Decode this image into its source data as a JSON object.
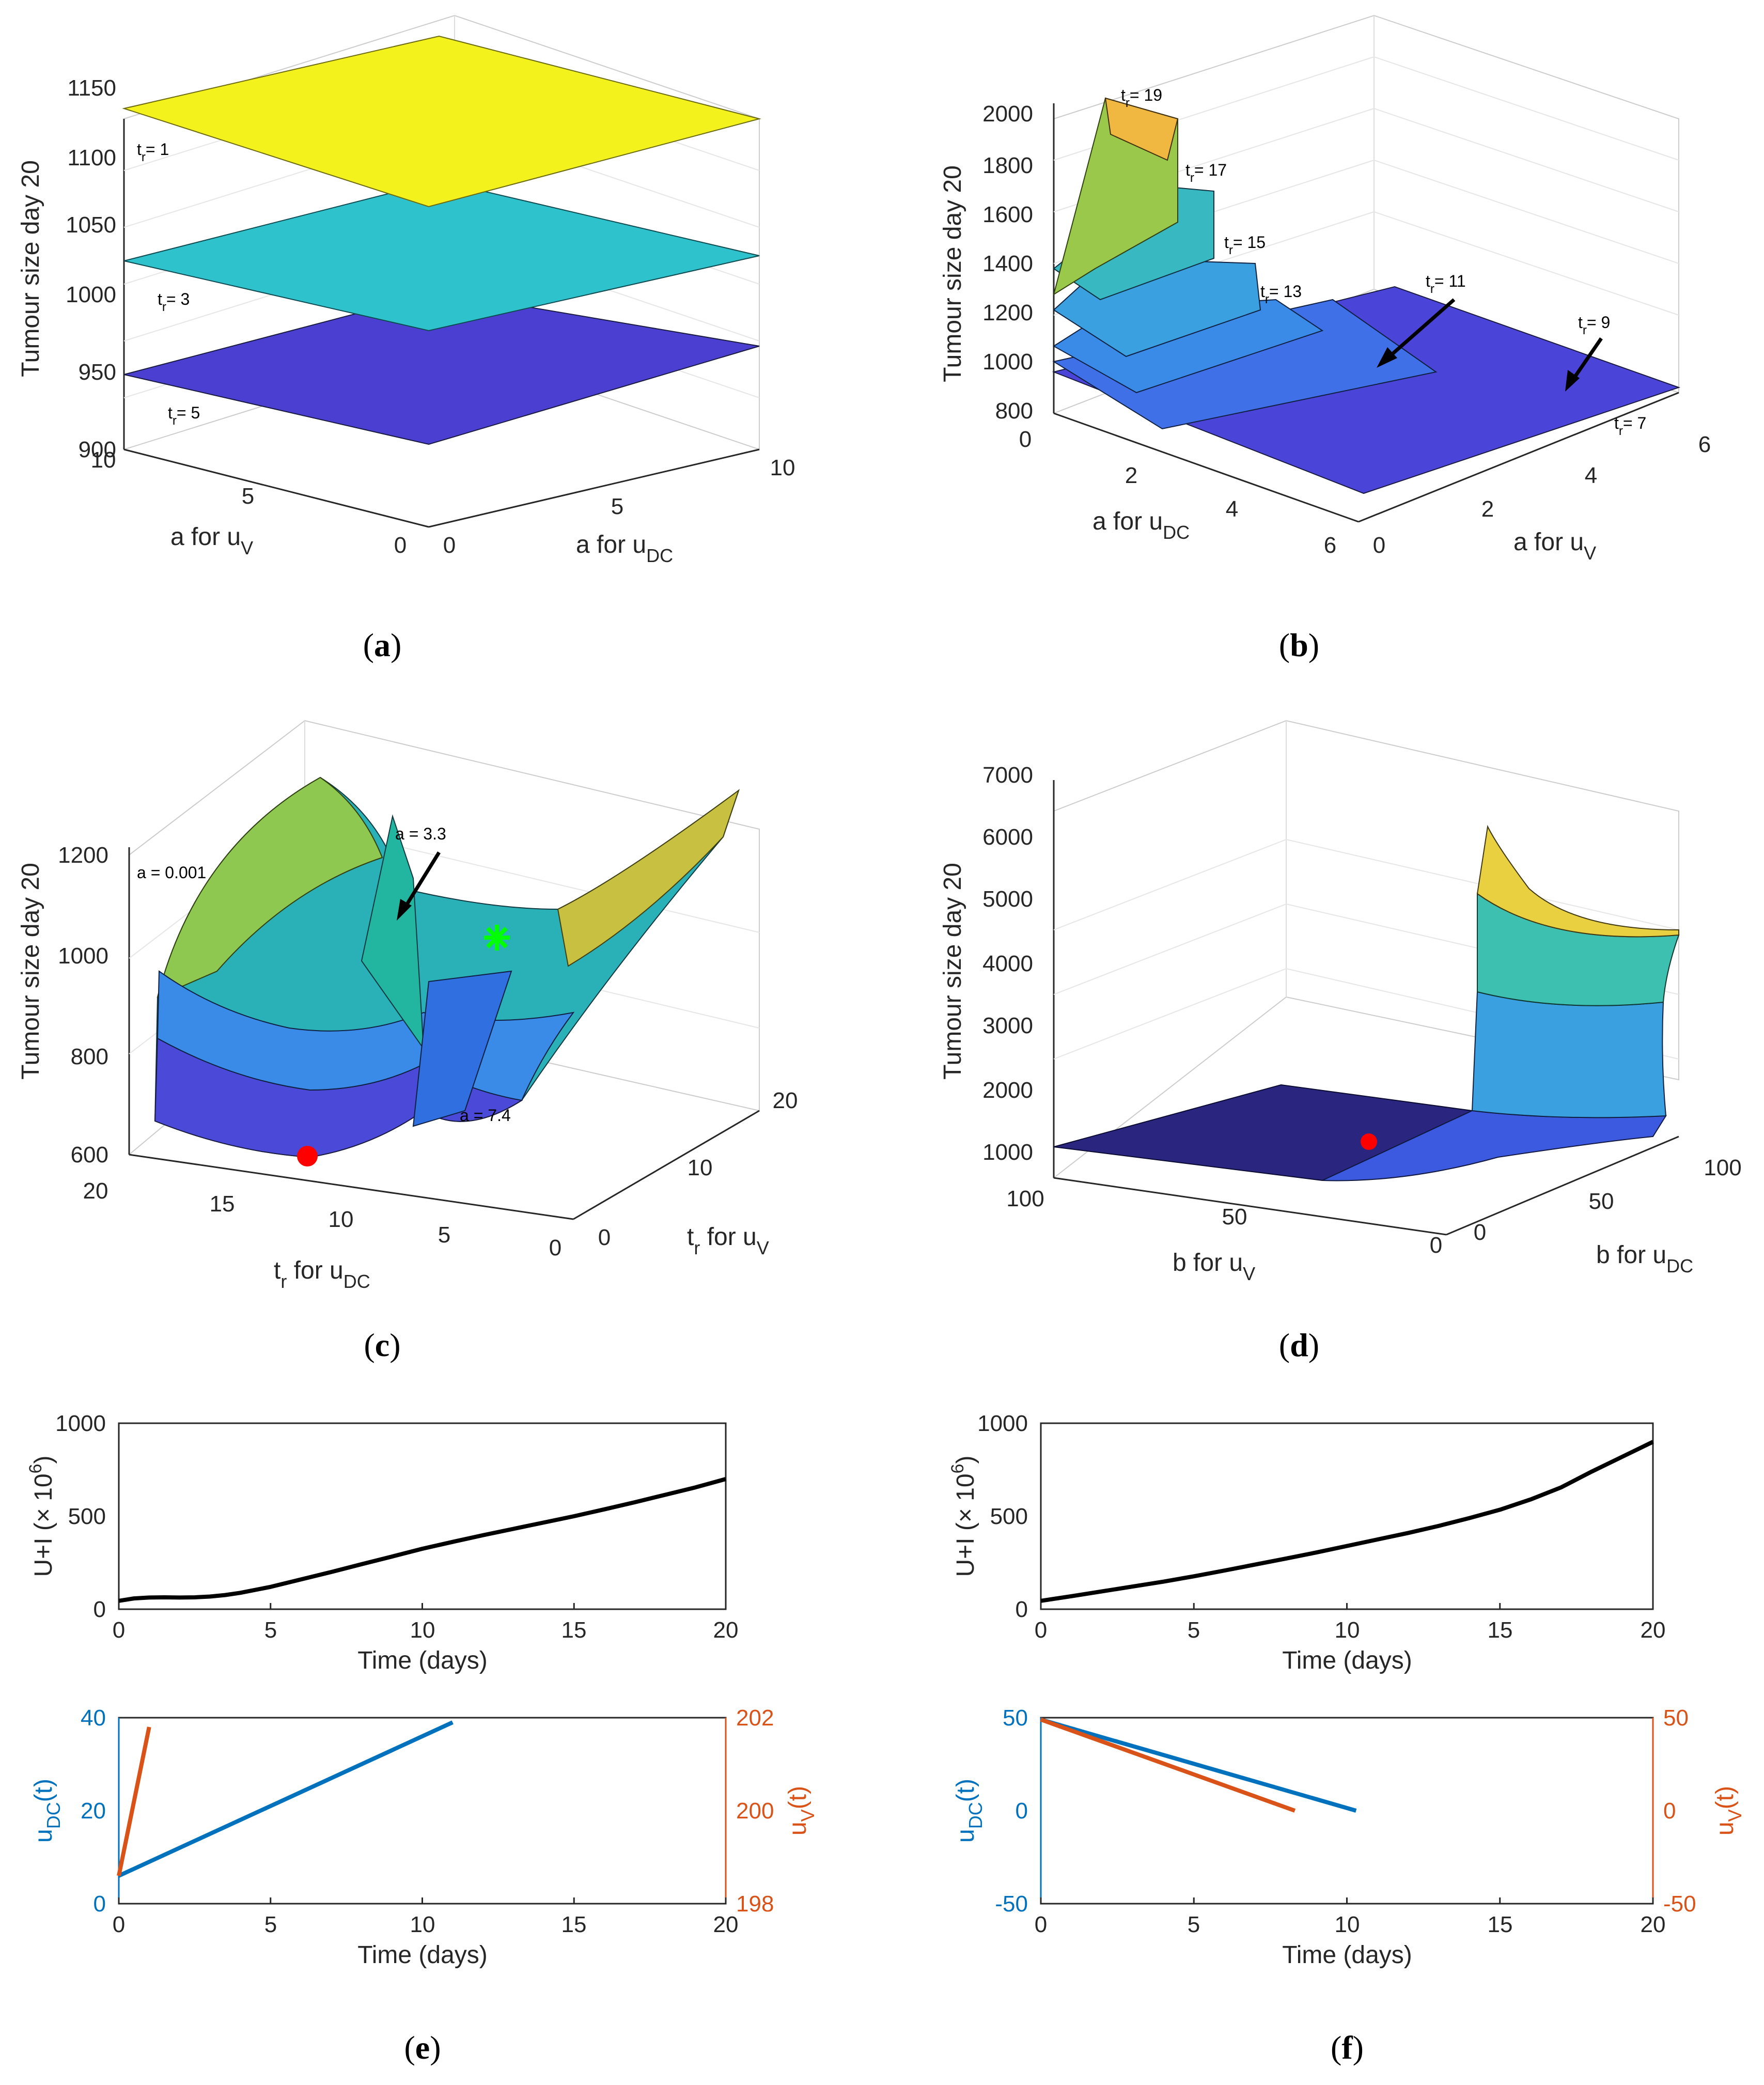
{
  "colors": {
    "axis": "#262626",
    "grid": "#e6e6e6",
    "black_curve": "#000000",
    "blue": "#0072bd",
    "orange": "#d95319",
    "parula_low": "#352a87",
    "parula_mid": "#21b7c6",
    "parula_high": "#f9fb0e",
    "red_marker": "#ff0000",
    "green_marker": "#00ff00"
  },
  "panels": {
    "a": {
      "caption": "a",
      "zlabel": "Tumour size day 20",
      "xlabel": "a for u",
      "xlabel_sub": "V",
      "ylabel": "a for u",
      "ylabel_sub": "DC",
      "zticks": [
        "900",
        "950",
        "1000",
        "1050",
        "1100",
        "1150"
      ],
      "xticks": [
        "10",
        "5",
        "0"
      ],
      "yticks": [
        "0",
        "5",
        "10"
      ],
      "annotations": [
        "t",
        "r",
        "= 1",
        "= 3",
        "= 5"
      ]
    },
    "b": {
      "caption": "b",
      "zlabel": "Tumour size day 20",
      "xlabel": "a for u",
      "xlabel_sub": "DC",
      "ylabel": "a for u",
      "ylabel_sub": "V",
      "zticks": [
        "800",
        "1000",
        "1200",
        "1400",
        "1600",
        "1800",
        "2000"
      ],
      "xticks": [
        "0",
        "2",
        "4",
        "6"
      ],
      "yticks": [
        "0",
        "2",
        "4",
        "6"
      ],
      "annotations": [
        "= 19",
        "= 17",
        "= 15",
        "= 13",
        "= 11",
        "= 9",
        "= 7"
      ]
    },
    "c": {
      "caption": "c",
      "zlabel": "Tumour size day 20",
      "xlabel": "t",
      "xlabel_sub": "r",
      "xlabel_rest": "for u",
      "xlabel_sub2": "DC",
      "ylabel": "t",
      "ylabel_sub": "r",
      "ylabel_rest": "for u",
      "ylabel_sub2": "V",
      "zticks": [
        "600",
        "800",
        "1000",
        "1200"
      ],
      "xticks": [
        "20",
        "15",
        "10",
        "5",
        "0"
      ],
      "yticks": [
        "0",
        "10",
        "20"
      ],
      "annotations": [
        "a = 0.001",
        "a = 3.3",
        "a = 7.4"
      ]
    },
    "d": {
      "caption": "d",
      "zlabel": "Tumour size day 20",
      "xlabel": "b for u",
      "xlabel_sub": "V",
      "ylabel": "b for u",
      "ylabel_sub": "DC",
      "zticks": [
        "1000",
        "2000",
        "3000",
        "4000",
        "5000",
        "6000",
        "7000"
      ],
      "xticks": [
        "100",
        "50",
        "0"
      ],
      "yticks": [
        "0",
        "50",
        "100"
      ]
    },
    "e": {
      "caption": "e",
      "top": {
        "ylabel": "U+I (× 10",
        "ylabel_sup": "6",
        "ylabel_end": ")",
        "xlabel": "Time (days)",
        "yticks": [
          "0",
          "500",
          "1000"
        ],
        "xticks": [
          "0",
          "5",
          "10",
          "15",
          "20"
        ]
      },
      "bottom": {
        "ylabel_left": "u",
        "ylabel_left_sub": "DC",
        "ylabel_left_end": "(t)",
        "ylabel_right": "u",
        "ylabel_right_sub": "V",
        "ylabel_right_end": "(t)",
        "xlabel": "Time (days)",
        "yticks_left": [
          "0",
          "20",
          "40"
        ],
        "yticks_right": [
          "198",
          "200",
          "202"
        ],
        "xticks": [
          "0",
          "5",
          "10",
          "15",
          "20"
        ]
      }
    },
    "f": {
      "caption": "f",
      "top": {
        "ylabel": "U+I (× 10",
        "ylabel_sup": "6",
        "ylabel_end": ")",
        "xlabel": "Time (days)",
        "yticks": [
          "0",
          "500",
          "1000"
        ],
        "xticks": [
          "0",
          "5",
          "10",
          "15",
          "20"
        ]
      },
      "bottom": {
        "ylabel_left": "u",
        "ylabel_left_sub": "DC",
        "ylabel_left_end": "(t)",
        "ylabel_right": "u",
        "ylabel_right_sub": "V",
        "ylabel_right_end": "(t)",
        "xlabel": "Time (days)",
        "yticks_left": [
          "-50",
          "0",
          "50"
        ],
        "yticks_right": [
          "-50",
          "0",
          "50"
        ],
        "xticks": [
          "0",
          "5",
          "10",
          "15",
          "20"
        ]
      }
    }
  },
  "chart_data": [
    {
      "id": "e-top",
      "type": "line",
      "xlim": [
        0,
        20
      ],
      "ylim": [
        0,
        1000
      ],
      "series": [
        {
          "name": "U+I",
          "x": [
            0,
            0.5,
            1,
            1.5,
            2,
            2.5,
            3,
            3.5,
            4,
            5,
            6,
            7,
            8,
            9,
            10,
            11,
            12,
            13,
            14,
            15,
            16,
            17,
            18,
            19,
            20
          ],
          "y": [
            45,
            58,
            63,
            64,
            63,
            64,
            68,
            76,
            88,
            120,
            160,
            200,
            242,
            283,
            325,
            362,
            398,
            432,
            466,
            500,
            537,
            575,
            615,
            655,
            700
          ]
        }
      ]
    },
    {
      "id": "e-bottom",
      "type": "line",
      "xlim": [
        0,
        20
      ],
      "ylim_left": [
        0,
        40
      ],
      "ylim_right": [
        198,
        202
      ],
      "series": [
        {
          "name": "u_DC(t)",
          "axis": "left",
          "x": [
            0,
            11
          ],
          "y": [
            6,
            39
          ]
        },
        {
          "name": "u_V(t)",
          "axis": "right",
          "x": [
            0,
            1
          ],
          "y": [
            198.6,
            201.8
          ]
        }
      ]
    },
    {
      "id": "f-top",
      "type": "line",
      "xlim": [
        0,
        20
      ],
      "ylim": [
        0,
        1000
      ],
      "series": [
        {
          "name": "U+I",
          "x": [
            0,
            1,
            2,
            3,
            4,
            5,
            6,
            7,
            8,
            9,
            10,
            11,
            12,
            13,
            14,
            15,
            16,
            17,
            18,
            19,
            20
          ],
          "y": [
            45,
            70,
            96,
            122,
            148,
            177,
            208,
            240,
            272,
            305,
            340,
            375,
            410,
            448,
            490,
            535,
            590,
            655,
            740,
            820,
            900
          ]
        }
      ]
    },
    {
      "id": "f-bottom",
      "type": "line",
      "xlim": [
        0,
        20
      ],
      "ylim_left": [
        -50,
        50
      ],
      "ylim_right": [
        -50,
        50
      ],
      "series": [
        {
          "name": "u_DC(t)",
          "axis": "left",
          "x": [
            0,
            10.3
          ],
          "y": [
            49,
            0
          ]
        },
        {
          "name": "u_V(t)",
          "axis": "right",
          "x": [
            0,
            8.3
          ],
          "y": [
            49,
            0
          ]
        }
      ]
    }
  ]
}
